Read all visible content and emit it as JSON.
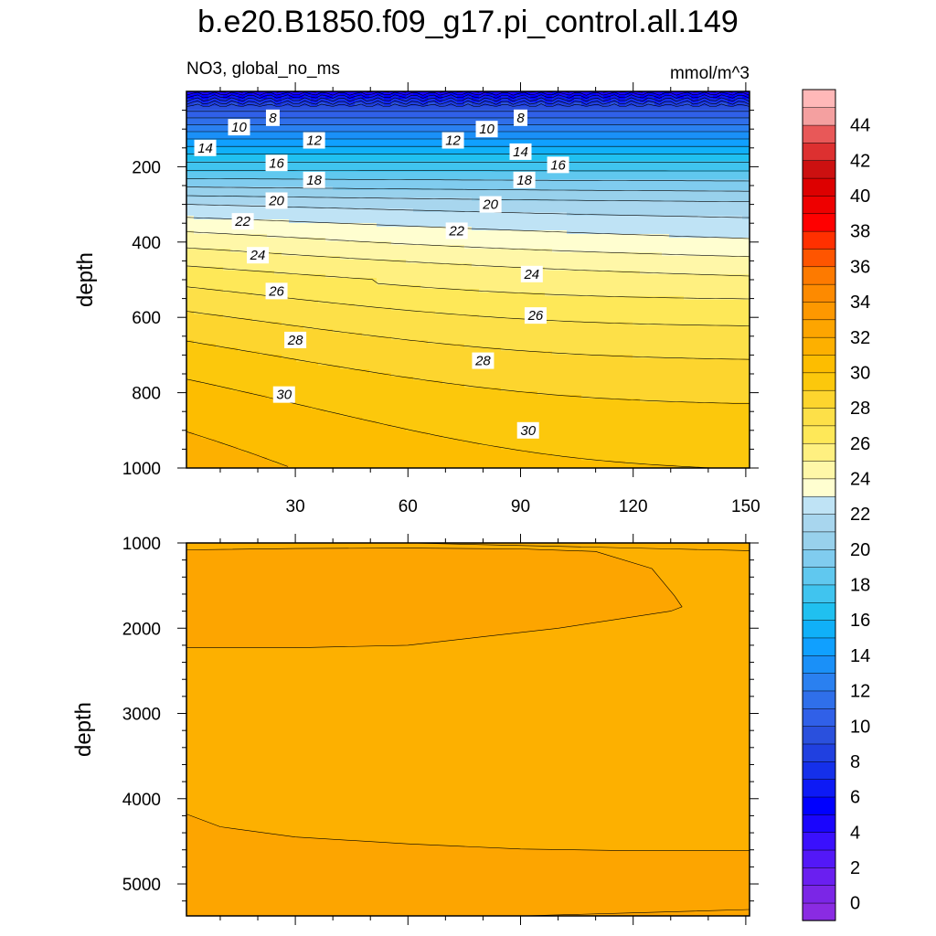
{
  "chart_data": {
    "type": "contour",
    "title": "b.e20.B1850.f09_g17.pi_control.all.149",
    "left_subtitle": "NO3, global_no_ms",
    "right_subtitle": "mmol/m^3",
    "contour_interval": 1,
    "colorbar": {
      "labels": [
        "0",
        "2",
        "4",
        "6",
        "8",
        "10",
        "12",
        "14",
        "16",
        "18",
        "20",
        "22",
        "24",
        "26",
        "28",
        "30",
        "32",
        "34",
        "36",
        "38",
        "40",
        "42",
        "44"
      ],
      "levels": [
        0,
        1,
        2,
        3,
        4,
        5,
        6,
        7,
        8,
        9,
        10,
        11,
        12,
        13,
        14,
        15,
        16,
        17,
        18,
        19,
        20,
        21,
        22,
        23,
        24,
        25,
        26,
        27,
        28,
        29,
        30,
        31,
        32,
        33,
        34,
        35,
        36,
        37,
        38,
        39,
        40,
        41,
        42,
        43,
        44,
        45
      ],
      "colors": [
        "#8a2be2",
        "#7b26e6",
        "#6a1ff0",
        "#5318f7",
        "#3a10fd",
        "#1a05fd",
        "#0000ff",
        "#0d1af5",
        "#1530ea",
        "#2040e0",
        "#2a50dd",
        "#3060e8",
        "#2f6fea",
        "#2a80f0",
        "#1a90f8",
        "#10a0ff",
        "#10b0f8",
        "#20c0f0",
        "#40c4ef",
        "#60c8ef",
        "#80ccef",
        "#98d1ec",
        "#a8d6ee",
        "#bfe3f5",
        "#fffed0",
        "#fff7a8",
        "#fff080",
        "#fee858",
        "#fde048",
        "#fdd52e",
        "#fcc80c",
        "#fdbd00",
        "#fdb000",
        "#fda500",
        "#fd9800",
        "#fd8a00",
        "#fd7a00",
        "#fe5500",
        "#ff3000",
        "#ff0000",
        "#ee0000",
        "#dd0000",
        "#cc1010",
        "#dd3030",
        "#e85858",
        "#f4a0a0",
        "#ffb8b8"
      ]
    },
    "panels": [
      {
        "name": "upper",
        "x": {
          "ticks": [
            30,
            60,
            90,
            120,
            150
          ],
          "range": [
            1,
            151
          ]
        },
        "y": {
          "label": "depth",
          "ticks": [
            200,
            400,
            600,
            800,
            1000
          ],
          "range": [
            0,
            1000
          ],
          "reversed": true
        },
        "contour_labels": [
          {
            "text": "8",
            "x": 24,
            "y": 70
          },
          {
            "text": "10",
            "x": 15,
            "y": 95
          },
          {
            "text": "14",
            "x": 6,
            "y": 150
          },
          {
            "text": "12",
            "x": 35,
            "y": 130
          },
          {
            "text": "16",
            "x": 25,
            "y": 190
          },
          {
            "text": "18",
            "x": 35,
            "y": 235
          },
          {
            "text": "20",
            "x": 25,
            "y": 290
          },
          {
            "text": "22",
            "x": 16,
            "y": 345
          },
          {
            "text": "24",
            "x": 20,
            "y": 435
          },
          {
            "text": "26",
            "x": 25,
            "y": 530
          },
          {
            "text": "28",
            "x": 30,
            "y": 660
          },
          {
            "text": "30",
            "x": 27,
            "y": 805
          },
          {
            "text": "12",
            "x": 72,
            "y": 130
          },
          {
            "text": "10",
            "x": 81,
            "y": 100
          },
          {
            "text": "8",
            "x": 90,
            "y": 70
          },
          {
            "text": "14",
            "x": 90,
            "y": 160
          },
          {
            "text": "16",
            "x": 100,
            "y": 195
          },
          {
            "text": "18",
            "x": 91,
            "y": 235
          },
          {
            "text": "20",
            "x": 82,
            "y": 300
          },
          {
            "text": "22",
            "x": 73,
            "y": 370
          },
          {
            "text": "24",
            "x": 93,
            "y": 485
          },
          {
            "text": "26",
            "x": 94,
            "y": 595
          },
          {
            "text": "28",
            "x": 80,
            "y": 715
          },
          {
            "text": "30",
            "x": 92,
            "y": 900
          }
        ]
      },
      {
        "name": "lower",
        "x": {
          "range": [
            1,
            151
          ]
        },
        "y": {
          "label": "depth",
          "ticks": [
            1000,
            2000,
            3000,
            4000,
            5000
          ],
          "range": [
            1000,
            5375
          ],
          "reversed": true
        }
      }
    ]
  }
}
